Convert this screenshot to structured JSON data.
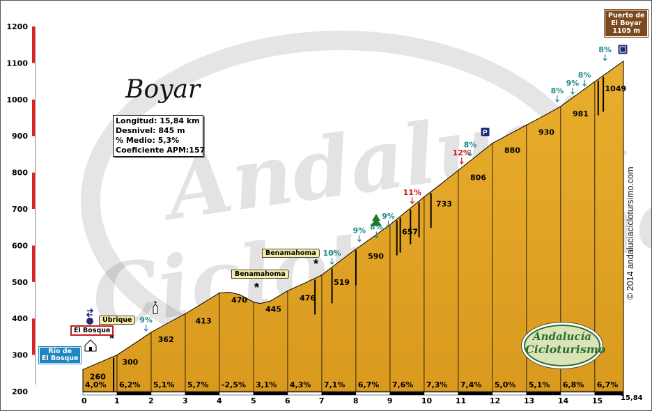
{
  "title": "Boyar",
  "info": {
    "longitud": "Longitud: 15,84 km",
    "desnivel": "Desnivel: 845 m",
    "medio": "% Medio: 5,3%",
    "coeficiente": "Coeficiente APM:157"
  },
  "summit_label": [
    "Puerto de",
    "El Boyar",
    "1105 m"
  ],
  "start_label": [
    "Río de",
    "El Bosque"
  ],
  "place_labels": {
    "el_bosque": "El Bosque",
    "ubrique": "Ubrique",
    "benamahoma_1": "Benamahoma",
    "benamahoma_2": "Benamahoma"
  },
  "copyright": "© 2014 andaluciaciclotursimo.com",
  "logo": {
    "line1": "Andalucía",
    "line2": "Cicloturismo"
  },
  "colors": {
    "fill": "#E4A52A",
    "line": "#000000",
    "axis_red": "#E02020",
    "teal": "#1E8C8C",
    "steep": "#D01010"
  },
  "chart_data": {
    "type": "area",
    "xlim": [
      0,
      15.84
    ],
    "ylim": [
      200,
      1200
    ],
    "yticks": [
      200,
      300,
      400,
      500,
      600,
      700,
      800,
      900,
      1000,
      1100,
      1200
    ],
    "xticks": [
      "0",
      "1",
      "2",
      "3",
      "4",
      "5",
      "6",
      "7",
      "8",
      "9",
      "10",
      "11",
      "12",
      "13",
      "14",
      "15"
    ],
    "x_end_label": "15,84",
    "profile": {
      "x": [
        0,
        0.5,
        1,
        1.5,
        2,
        2.5,
        3,
        3.5,
        4,
        4.3,
        4.6,
        5,
        5.2,
        5.5,
        6,
        6.5,
        7,
        7.5,
        8,
        8.5,
        9,
        9.5,
        10,
        10.5,
        11,
        11.5,
        12,
        12.5,
        13,
        13.5,
        14,
        14.5,
        15,
        15.84
      ],
      "y": [
        260,
        280,
        300,
        331,
        362,
        388,
        413,
        441,
        470,
        472,
        465,
        445,
        441,
        448,
        476,
        497,
        519,
        555,
        590,
        623,
        657,
        695,
        733,
        769,
        806,
        843,
        880,
        905,
        930,
        955,
        981,
        1015,
        1049,
        1105
      ]
    },
    "km_gradients": [
      "4,0%",
      "6,2%",
      "5,1%",
      "5,7%",
      "-2,5%",
      "3,1%",
      "4,3%",
      "7,1%",
      "6,7%",
      "7,6%",
      "7,3%",
      "7,4%",
      "5,0%",
      "5,1%",
      "6,8%",
      "6,7%"
    ],
    "altitude_labels": [
      {
        "x": 0.2,
        "y": 260,
        "label": "260"
      },
      {
        "x": 1.15,
        "y": 300,
        "label": "300"
      },
      {
        "x": 2.2,
        "y": 362,
        "label": "362"
      },
      {
        "x": 3.3,
        "y": 413,
        "label": "413"
      },
      {
        "x": 4.35,
        "y": 470,
        "label": "470"
      },
      {
        "x": 5.35,
        "y": 445,
        "label": "445"
      },
      {
        "x": 6.35,
        "y": 476,
        "label": "476"
      },
      {
        "x": 7.35,
        "y": 519,
        "label": "519"
      },
      {
        "x": 8.35,
        "y": 590,
        "label": "590"
      },
      {
        "x": 9.35,
        "y": 657,
        "label": "657"
      },
      {
        "x": 10.35,
        "y": 733,
        "label": "733"
      },
      {
        "x": 11.35,
        "y": 806,
        "label": "806"
      },
      {
        "x": 12.35,
        "y": 880,
        "label": "880"
      },
      {
        "x": 13.35,
        "y": 930,
        "label": "930"
      },
      {
        "x": 14.35,
        "y": 981,
        "label": "981"
      },
      {
        "x": 15.3,
        "y": 1049,
        "label": "1049"
      }
    ],
    "slope_annotations": [
      {
        "x": 1.85,
        "y": 362,
        "label": "9%",
        "steep": false
      },
      {
        "x": 7.3,
        "y": 545,
        "label": "10%",
        "steep": false
      },
      {
        "x": 8.1,
        "y": 607,
        "label": "9%",
        "steep": false
      },
      {
        "x": 8.6,
        "y": 617,
        "label": "8%",
        "steep": false
      },
      {
        "x": 8.95,
        "y": 647,
        "label": "9%",
        "steep": false
      },
      {
        "x": 9.65,
        "y": 711,
        "label": "11%",
        "steep": true
      },
      {
        "x": 11.1,
        "y": 820,
        "label": "12%",
        "steep": true
      },
      {
        "x": 11.35,
        "y": 842,
        "label": "8%",
        "steep": false
      },
      {
        "x": 13.9,
        "y": 990,
        "label": "8%",
        "steep": false
      },
      {
        "x": 14.35,
        "y": 1011,
        "label": "9%",
        "steep": false
      },
      {
        "x": 14.7,
        "y": 1033,
        "label": "8%",
        "steep": false
      },
      {
        "x": 15.3,
        "y": 1103,
        "label": "8%",
        "steep": false
      }
    ]
  }
}
